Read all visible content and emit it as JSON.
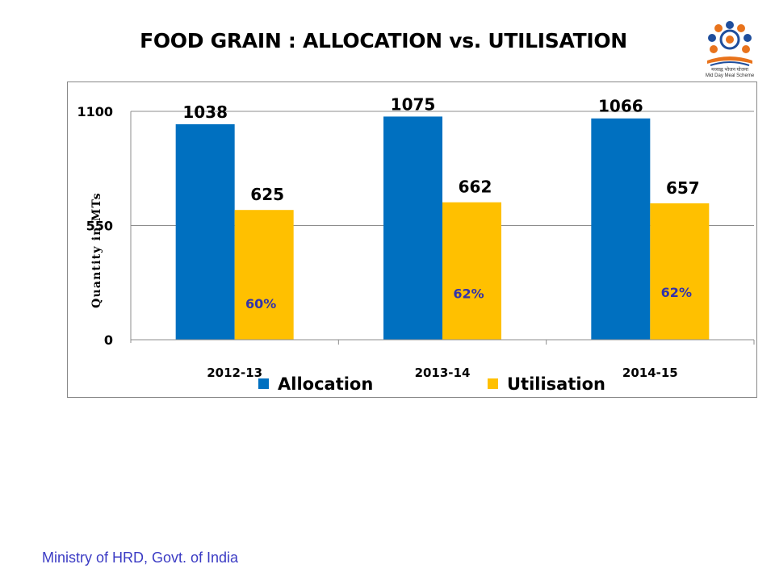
{
  "slide": {
    "title": "FOOD GRAIN : ALLOCATION vs. UTILISATION",
    "footer": "Ministry of HRD, Govt. of India",
    "logo_caption": "मध्याह्न भोजन योजना\nMid Day Meal Scheme"
  },
  "colors": {
    "allocation": "#0070C0",
    "utilisation": "#FFC000",
    "percent_label": "#3333AA",
    "axis": "#888888"
  },
  "chart_data": {
    "type": "bar",
    "title": "",
    "xlabel": "",
    "ylabel": "Quantity in MTs",
    "categories": [
      "2012-13",
      "2013-14",
      "2014-15"
    ],
    "series": [
      {
        "name": "Allocation",
        "values": [
          1038,
          1075,
          1066
        ]
      },
      {
        "name": "Utilisation",
        "values": [
          625,
          662,
          657
        ]
      }
    ],
    "utilisation_percent_labels": [
      "60%",
      "62%",
      "62%"
    ],
    "yticks": [
      0,
      550,
      1100
    ],
    "ylim": [
      0,
      1100
    ],
    "grid": true,
    "legend": "bottom"
  }
}
